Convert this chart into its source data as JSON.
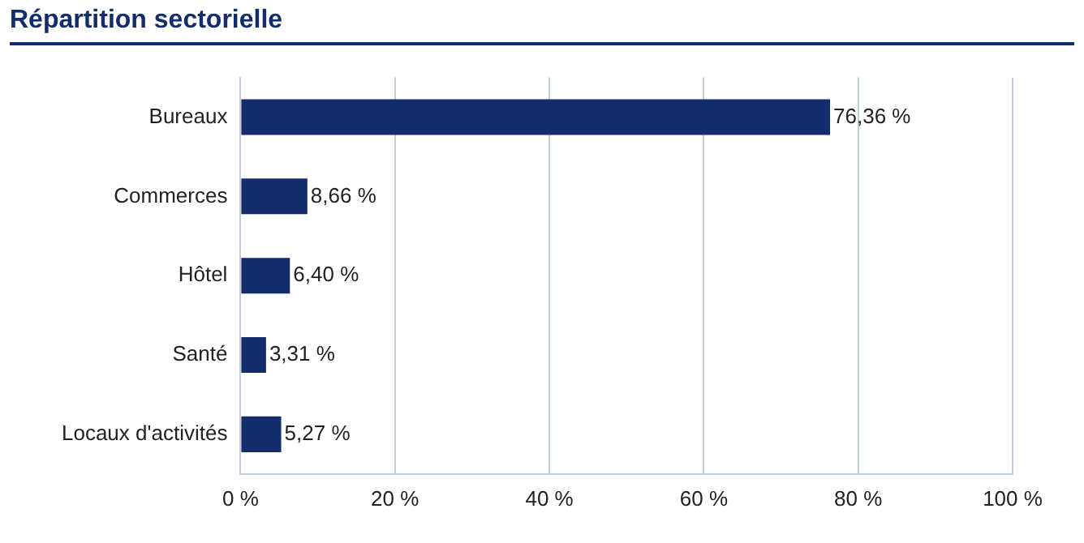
{
  "chart_data": {
    "type": "bar",
    "orientation": "horizontal",
    "title": "Répartition sectorielle",
    "categories": [
      "Bureaux",
      "Commerces",
      "Hôtel",
      "Santé",
      "Locaux d'activités"
    ],
    "values": [
      76.36,
      8.66,
      6.4,
      3.31,
      5.27
    ],
    "value_labels": [
      "76,36 %",
      "8,66 %",
      "6,40 %",
      "3,31 %",
      "5,27 %"
    ],
    "color": "#132c6b",
    "xlim": [
      0,
      100
    ],
    "xticks": [
      {
        "value": 0,
        "label": "0 %"
      },
      {
        "value": 20,
        "label": "20 %"
      },
      {
        "value": 40,
        "label": "40 %"
      },
      {
        "value": 60,
        "label": "60 %"
      },
      {
        "value": 80,
        "label": "80 %"
      },
      {
        "value": 100,
        "label": "100 %"
      }
    ],
    "grid": "x",
    "legend": false
  }
}
